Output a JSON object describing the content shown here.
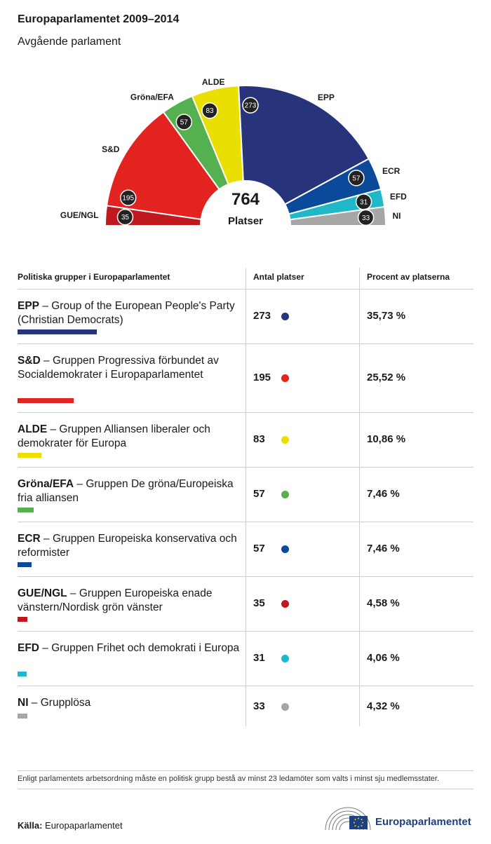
{
  "title": "Europaparlamentet 2009–2014",
  "subtitle": "Avgående parlament",
  "chart_data": {
    "type": "pie",
    "total_value": "764",
    "total_label": "Platser",
    "slices": [
      {
        "label": "GUE/NGL",
        "value": 35,
        "color": "#c0181f"
      },
      {
        "label": "S&D",
        "value": 195,
        "color": "#e3231f"
      },
      {
        "label": "Gröna/EFA",
        "value": 57,
        "color": "#55b04f"
      },
      {
        "label": "ALDE",
        "value": 83,
        "color": "#e9df00"
      },
      {
        "label": "EPP",
        "value": 273,
        "color": "#27347b"
      },
      {
        "label": "ECR",
        "value": 57,
        "color": "#0b4a9a"
      },
      {
        "label": "EFD",
        "value": 31,
        "color": "#1eb8c9"
      },
      {
        "label": "NI",
        "value": 33,
        "color": "#a6a6a6"
      }
    ]
  },
  "table": {
    "headers": [
      "Politiska grupper i Europaparlamentet",
      "Antal platser",
      "Procent av platserna"
    ],
    "rows": [
      {
        "abbr": "EPP",
        "name": " – Group of the European People's Party (Christian Democrats)",
        "seats": "273",
        "pct": "35,73 %",
        "color": "#27347b"
      },
      {
        "abbr": "S&D",
        "name": " – Gruppen Progressiva förbundet av Socialdemokrater i Europaparlamentet",
        "seats": "195",
        "pct": "25,52 %",
        "color": "#e3231f"
      },
      {
        "abbr": "ALDE",
        "name": " – Gruppen Alliansen liberaler och demokrater för Europa",
        "seats": "83",
        "pct": "10,86 %",
        "color": "#e9df00"
      },
      {
        "abbr": "Gröna/EFA",
        "name": " – Gruppen De gröna/Europeiska fria alliansen",
        "seats": "57",
        "pct": "7,46 %",
        "color": "#55b04f"
      },
      {
        "abbr": "ECR",
        "name": " – Gruppen Europeiska konservativa och reformister",
        "seats": "57",
        "pct": "7,46 %",
        "color": "#0b4a9a"
      },
      {
        "abbr": "GUE/NGL",
        "name": " – Gruppen Europeiska enade vänstern/Nordisk grön vänster",
        "seats": "35",
        "pct": "4,58 %",
        "color": "#c0181f"
      },
      {
        "abbr": "EFD",
        "name": " – Gruppen Frihet och demokrati i Europa",
        "seats": "31",
        "pct": "4,06 %",
        "color": "#1eb8c9"
      },
      {
        "abbr": "NI",
        "name": " – Grupplösa",
        "seats": "33",
        "pct": "4,32 %",
        "color": "#a6a6a6"
      }
    ]
  },
  "footnote": "Enligt parlamentets arbetsordning måste en politisk grupp bestå av minst 23 ledamöter som valts i minst sju medlemsstater.",
  "source": {
    "label": "Källa:",
    "value": "Europaparlamentet"
  },
  "logo_text": "Europaparlamentet",
  "logo_icon": "european-parliament-hemicycle-eu-flag-icon"
}
